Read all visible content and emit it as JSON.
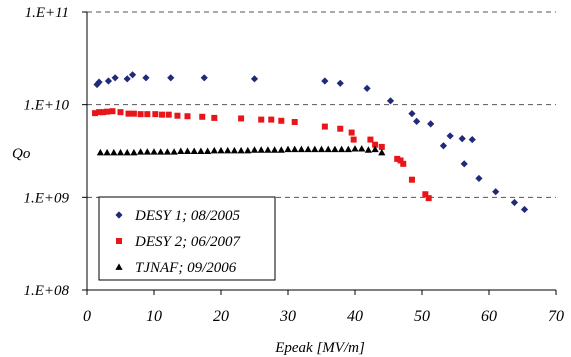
{
  "chart_data": {
    "type": "scatter",
    "title": "",
    "xlabel": "Epeak [MV/m]",
    "ylabel": "Qo",
    "x_range": [
      0,
      70
    ],
    "y_range": [
      100000000.0,
      100000000000.0
    ],
    "y_scale": "log",
    "x_ticks": [
      "0",
      "10",
      "20",
      "30",
      "40",
      "50",
      "60",
      "70"
    ],
    "y_ticks": [
      "1.E+08",
      "1.E+09",
      "1.E+10",
      "1.E+11"
    ],
    "gridlines": "horizontal dashed at 1.E+09, 1.E+10, 1.E+11",
    "legend_position": "bottom-left",
    "series": [
      {
        "name": "DESY 1; 08/2005",
        "color": "#1f2a7a",
        "marker": "diamond",
        "points": [
          [
            1.5,
            16500000000.0
          ],
          [
            1.8,
            17500000000.0
          ],
          [
            3.2,
            18000000000.0
          ],
          [
            4.2,
            19500000000.0
          ],
          [
            6.0,
            19000000000.0
          ],
          [
            6.8,
            21000000000.0
          ],
          [
            8.8,
            19500000000.0
          ],
          [
            12.5,
            19500000000.0
          ],
          [
            17.5,
            19500000000.0
          ],
          [
            25.0,
            19000000000.0
          ],
          [
            35.5,
            18000000000.0
          ],
          [
            37.8,
            17000000000.0
          ],
          [
            41.8,
            15000000000.0
          ],
          [
            45.3,
            11000000000.0
          ],
          [
            48.5,
            8000000000.0
          ],
          [
            49.2,
            6600000000.0
          ],
          [
            51.3,
            6200000000.0
          ],
          [
            53.2,
            3600000000.0
          ],
          [
            54.2,
            4600000000.0
          ],
          [
            56.0,
            4300000000.0
          ],
          [
            56.3,
            2300000000.0
          ],
          [
            57.5,
            4200000000.0
          ],
          [
            58.5,
            1600000000.0
          ],
          [
            61.0,
            1150000000.0
          ],
          [
            63.8,
            880000000.0
          ],
          [
            65.3,
            740000000.0
          ]
        ]
      },
      {
        "name": "DESY 2; 06/2007",
        "color": "#e8161b",
        "marker": "square",
        "points": [
          [
            1.2,
            8100000000.0
          ],
          [
            1.8,
            8300000000.0
          ],
          [
            2.4,
            8300000000.0
          ],
          [
            3.0,
            8400000000.0
          ],
          [
            3.8,
            8500000000.0
          ],
          [
            5.0,
            8300000000.0
          ],
          [
            6.2,
            8000000000.0
          ],
          [
            7.0,
            8000000000.0
          ],
          [
            8.0,
            7900000000.0
          ],
          [
            9.0,
            7900000000.0
          ],
          [
            10.2,
            7900000000.0
          ],
          [
            11.2,
            7800000000.0
          ],
          [
            12.2,
            7800000000.0
          ],
          [
            13.5,
            7600000000.0
          ],
          [
            15.0,
            7500000000.0
          ],
          [
            17.2,
            7400000000.0
          ],
          [
            19.0,
            7200000000.0
          ],
          [
            23.0,
            7100000000.0
          ],
          [
            26.0,
            6900000000.0
          ],
          [
            27.5,
            6900000000.0
          ],
          [
            29.0,
            6700000000.0
          ],
          [
            31.0,
            6500000000.0
          ],
          [
            35.5,
            5800000000.0
          ],
          [
            37.8,
            5500000000.0
          ],
          [
            39.5,
            5000000000.0
          ],
          [
            39.8,
            4200000000.0
          ],
          [
            42.3,
            4200000000.0
          ],
          [
            43.0,
            3700000000.0
          ],
          [
            44.0,
            3500000000.0
          ],
          [
            46.3,
            2600000000.0
          ],
          [
            46.8,
            2500000000.0
          ],
          [
            47.2,
            2300000000.0
          ],
          [
            48.5,
            1550000000.0
          ],
          [
            50.5,
            1080000000.0
          ],
          [
            51.0,
            980000000.0
          ]
        ]
      },
      {
        "name": "TJNAF;  09/2006",
        "color": "#000000",
        "marker": "triangle",
        "points": [
          [
            2.0,
            3050000000.0
          ],
          [
            3.0,
            3050000000.0
          ],
          [
            4.0,
            3050000000.0
          ],
          [
            5.0,
            3050000000.0
          ],
          [
            6.0,
            3050000000.0
          ],
          [
            7.0,
            3050000000.0
          ],
          [
            8.0,
            3100000000.0
          ],
          [
            9.0,
            3100000000.0
          ],
          [
            10.0,
            3100000000.0
          ],
          [
            11.0,
            3100000000.0
          ],
          [
            12.0,
            3100000000.0
          ],
          [
            13.0,
            3100000000.0
          ],
          [
            14.0,
            3150000000.0
          ],
          [
            15.0,
            3150000000.0
          ],
          [
            16.0,
            3150000000.0
          ],
          [
            17.0,
            3150000000.0
          ],
          [
            18.0,
            3150000000.0
          ],
          [
            19.0,
            3200000000.0
          ],
          [
            20.0,
            3200000000.0
          ],
          [
            21.0,
            3200000000.0
          ],
          [
            22.0,
            3200000000.0
          ],
          [
            23.0,
            3200000000.0
          ],
          [
            24.0,
            3200000000.0
          ],
          [
            25.0,
            3250000000.0
          ],
          [
            26.0,
            3250000000.0
          ],
          [
            27.0,
            3250000000.0
          ],
          [
            28.0,
            3250000000.0
          ],
          [
            29.0,
            3250000000.0
          ],
          [
            30.0,
            3300000000.0
          ],
          [
            31.0,
            3300000000.0
          ],
          [
            32.0,
            3300000000.0
          ],
          [
            33.0,
            3300000000.0
          ],
          [
            34.0,
            3300000000.0
          ],
          [
            35.0,
            3300000000.0
          ],
          [
            36.0,
            3300000000.0
          ],
          [
            37.0,
            3300000000.0
          ],
          [
            38.0,
            3300000000.0
          ],
          [
            39.0,
            3300000000.0
          ],
          [
            40.0,
            3350000000.0
          ],
          [
            41.0,
            3350000000.0
          ],
          [
            42.0,
            3250000000.0
          ],
          [
            43.0,
            3300000000.0
          ],
          [
            44.0,
            3050000000.0
          ]
        ]
      }
    ]
  }
}
